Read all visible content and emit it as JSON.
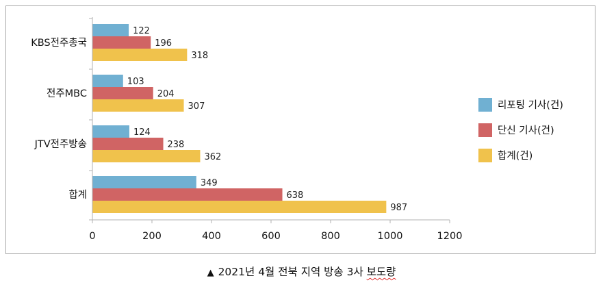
{
  "chart_data": {
    "type": "bar",
    "orientation": "horizontal",
    "categories": [
      "KBS전주총국",
      "전주MBC",
      "JTV전주방송",
      "합계"
    ],
    "series": [
      {
        "name": "리포팅 기사(건)",
        "color": "#70b0d2",
        "values": [
          122,
          103,
          124,
          349
        ]
      },
      {
        "name": "단신 기사(건)",
        "color": "#d06464",
        "values": [
          196,
          204,
          238,
          638
        ]
      },
      {
        "name": "합계(건)",
        "color": "#f0c24c",
        "values": [
          318,
          307,
          362,
          987
        ]
      }
    ],
    "xlim": [
      0,
      1200
    ],
    "xticks": [
      0,
      200,
      400,
      600,
      800,
      1000,
      1200
    ],
    "legend_position": "right",
    "grid": false
  },
  "caption": {
    "marker": "▲",
    "text": "2021년 4월 전북 지역 방송 3사",
    "underlined": "보도량"
  }
}
